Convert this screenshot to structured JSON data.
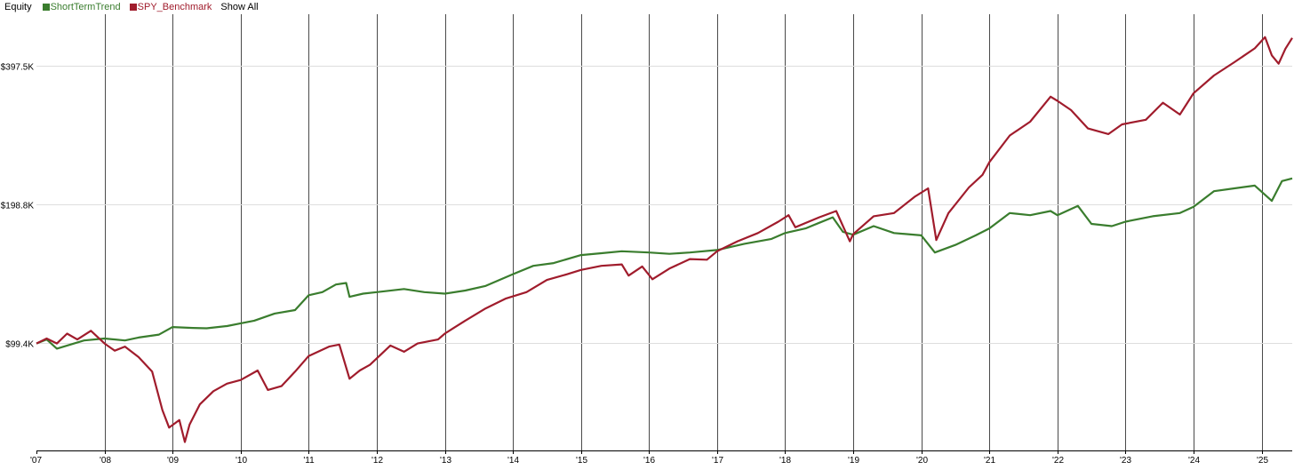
{
  "legend": {
    "title": "Equity",
    "items": [
      {
        "label": "ShortTermTrend",
        "color": "#3a7d2e"
      },
      {
        "label": "SPY_Benchmark",
        "color": "#a01c2c"
      }
    ],
    "show_all": "Show All"
  },
  "chart_data": {
    "type": "line",
    "title": "Equity",
    "y_scale": "log",
    "ylim": [
      58000,
      500000
    ],
    "xlim": [
      2007.0,
      2025.45
    ],
    "y_ticks": [
      {
        "value": 99400,
        "label": "$99.4K"
      },
      {
        "value": 198800,
        "label": "$198.8K"
      },
      {
        "value": 397500,
        "label": "$397.5K"
      }
    ],
    "x_ticks": [
      {
        "value": 2007,
        "label": "'07"
      },
      {
        "value": 2008,
        "label": "'08"
      },
      {
        "value": 2009,
        "label": "'09"
      },
      {
        "value": 2010,
        "label": "'10"
      },
      {
        "value": 2011,
        "label": "'11"
      },
      {
        "value": 2012,
        "label": "'12"
      },
      {
        "value": 2013,
        "label": "'13"
      },
      {
        "value": 2014,
        "label": "'14"
      },
      {
        "value": 2015,
        "label": "'15"
      },
      {
        "value": 2016,
        "label": "'16"
      },
      {
        "value": 2017,
        "label": "'17"
      },
      {
        "value": 2018,
        "label": "'18"
      },
      {
        "value": 2019,
        "label": "'19"
      },
      {
        "value": 2020,
        "label": "'20"
      },
      {
        "value": 2021,
        "label": "'21"
      },
      {
        "value": 2022,
        "label": "'22"
      },
      {
        "value": 2023,
        "label": "'23"
      },
      {
        "value": 2024,
        "label": "'24"
      },
      {
        "value": 2025,
        "label": "'25"
      }
    ],
    "grid": {
      "vertical": true,
      "horizontal": true
    },
    "series": [
      {
        "name": "ShortTermTrend",
        "color": "#3a7d2e",
        "points": [
          [
            2007.0,
            99000
          ],
          [
            2007.15,
            101000
          ],
          [
            2007.3,
            96500
          ],
          [
            2007.5,
            98500
          ],
          [
            2007.7,
            100500
          ],
          [
            2008.0,
            101500
          ],
          [
            2008.3,
            100500
          ],
          [
            2008.5,
            102000
          ],
          [
            2008.8,
            103500
          ],
          [
            2009.0,
            107500
          ],
          [
            2009.3,
            107000
          ],
          [
            2009.5,
            106800
          ],
          [
            2009.8,
            108000
          ],
          [
            2010.0,
            109500
          ],
          [
            2010.2,
            111000
          ],
          [
            2010.5,
            115000
          ],
          [
            2010.8,
            117000
          ],
          [
            2011.0,
            126000
          ],
          [
            2011.2,
            128000
          ],
          [
            2011.4,
            133000
          ],
          [
            2011.55,
            134000
          ],
          [
            2011.6,
            125000
          ],
          [
            2011.8,
            127000
          ],
          [
            2012.0,
            128000
          ],
          [
            2012.4,
            130000
          ],
          [
            2012.7,
            128000
          ],
          [
            2013.0,
            127000
          ],
          [
            2013.3,
            129000
          ],
          [
            2013.6,
            132000
          ],
          [
            2014.0,
            140000
          ],
          [
            2014.3,
            146000
          ],
          [
            2014.6,
            148000
          ],
          [
            2015.0,
            154000
          ],
          [
            2015.3,
            155500
          ],
          [
            2015.6,
            157000
          ],
          [
            2016.0,
            156000
          ],
          [
            2016.3,
            155000
          ],
          [
            2016.6,
            156000
          ],
          [
            2017.0,
            158000
          ],
          [
            2017.4,
            163000
          ],
          [
            2017.8,
            167000
          ],
          [
            2018.0,
            172000
          ],
          [
            2018.3,
            176000
          ],
          [
            2018.5,
            181000
          ],
          [
            2018.7,
            186000
          ],
          [
            2018.85,
            173000
          ],
          [
            2019.0,
            170500
          ],
          [
            2019.3,
            178000
          ],
          [
            2019.6,
            172000
          ],
          [
            2020.0,
            170000
          ],
          [
            2020.2,
            156000
          ],
          [
            2020.5,
            162000
          ],
          [
            2020.8,
            170000
          ],
          [
            2021.0,
            176000
          ],
          [
            2021.3,
            190000
          ],
          [
            2021.6,
            188000
          ],
          [
            2021.9,
            192000
          ],
          [
            2022.0,
            188000
          ],
          [
            2022.3,
            197000
          ],
          [
            2022.5,
            180000
          ],
          [
            2022.8,
            178000
          ],
          [
            2023.0,
            182000
          ],
          [
            2023.4,
            187000
          ],
          [
            2023.8,
            190000
          ],
          [
            2024.0,
            196000
          ],
          [
            2024.3,
            212000
          ],
          [
            2024.6,
            215000
          ],
          [
            2024.9,
            218000
          ],
          [
            2025.15,
            202000
          ],
          [
            2025.3,
            223000
          ],
          [
            2025.45,
            226000
          ]
        ]
      },
      {
        "name": "SPY_Benchmark",
        "color": "#a01c2c",
        "points": [
          [
            2007.0,
            99000
          ],
          [
            2007.15,
            101500
          ],
          [
            2007.3,
            99000
          ],
          [
            2007.45,
            104000
          ],
          [
            2007.6,
            101000
          ],
          [
            2007.8,
            105500
          ],
          [
            2008.0,
            99000
          ],
          [
            2008.15,
            95500
          ],
          [
            2008.3,
            97500
          ],
          [
            2008.5,
            92500
          ],
          [
            2008.7,
            86000
          ],
          [
            2008.85,
            71000
          ],
          [
            2008.95,
            65000
          ],
          [
            2009.1,
            67500
          ],
          [
            2009.18,
            60500
          ],
          [
            2009.25,
            66000
          ],
          [
            2009.4,
            73000
          ],
          [
            2009.6,
            78000
          ],
          [
            2009.8,
            81000
          ],
          [
            2010.0,
            82500
          ],
          [
            2010.25,
            86500
          ],
          [
            2010.4,
            78500
          ],
          [
            2010.6,
            80000
          ],
          [
            2010.8,
            86000
          ],
          [
            2011.0,
            93000
          ],
          [
            2011.3,
            97500
          ],
          [
            2011.45,
            98500
          ],
          [
            2011.6,
            83000
          ],
          [
            2011.75,
            86500
          ],
          [
            2011.9,
            89000
          ],
          [
            2012.2,
            98000
          ],
          [
            2012.4,
            95000
          ],
          [
            2012.6,
            99000
          ],
          [
            2012.9,
            101000
          ],
          [
            2013.0,
            104000
          ],
          [
            2013.3,
            111000
          ],
          [
            2013.6,
            118000
          ],
          [
            2013.9,
            124000
          ],
          [
            2014.2,
            128000
          ],
          [
            2014.5,
            136000
          ],
          [
            2014.8,
            140000
          ],
          [
            2015.0,
            143000
          ],
          [
            2015.3,
            146000
          ],
          [
            2015.6,
            147000
          ],
          [
            2015.7,
            139000
          ],
          [
            2015.9,
            145500
          ],
          [
            2016.05,
            136500
          ],
          [
            2016.3,
            144000
          ],
          [
            2016.6,
            151000
          ],
          [
            2016.85,
            150500
          ],
          [
            2017.0,
            157000
          ],
          [
            2017.3,
            165000
          ],
          [
            2017.6,
            172000
          ],
          [
            2017.9,
            182000
          ],
          [
            2018.05,
            188000
          ],
          [
            2018.15,
            177000
          ],
          [
            2018.5,
            186000
          ],
          [
            2018.75,
            192000
          ],
          [
            2018.95,
            165000
          ],
          [
            2019.0,
            171000
          ],
          [
            2019.3,
            187000
          ],
          [
            2019.6,
            190000
          ],
          [
            2019.9,
            206000
          ],
          [
            2020.1,
            215000
          ],
          [
            2020.22,
            166000
          ],
          [
            2020.4,
            190000
          ],
          [
            2020.7,
            216000
          ],
          [
            2020.9,
            230000
          ],
          [
            2021.0,
            245000
          ],
          [
            2021.3,
            280000
          ],
          [
            2021.6,
            300000
          ],
          [
            2021.9,
            340000
          ],
          [
            2022.0,
            333000
          ],
          [
            2022.2,
            318000
          ],
          [
            2022.45,
            290000
          ],
          [
            2022.75,
            282000
          ],
          [
            2022.95,
            296000
          ],
          [
            2023.3,
            303000
          ],
          [
            2023.55,
            330000
          ],
          [
            2023.8,
            311000
          ],
          [
            2024.0,
            346000
          ],
          [
            2024.3,
            378000
          ],
          [
            2024.6,
            404000
          ],
          [
            2024.9,
            433000
          ],
          [
            2025.05,
            458000
          ],
          [
            2025.15,
            418000
          ],
          [
            2025.25,
            401000
          ],
          [
            2025.35,
            432000
          ],
          [
            2025.45,
            456000
          ]
        ]
      }
    ]
  }
}
